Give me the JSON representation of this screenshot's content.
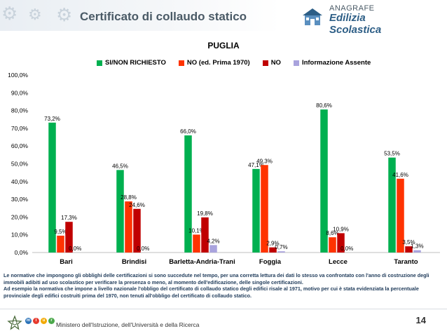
{
  "header": {
    "title": "Certificato di collaudo statico"
  },
  "logo": {
    "top": "ANAGRAFE",
    "bottom": "Edilizia Scolastica"
  },
  "chart_data": {
    "type": "bar",
    "title": "PUGLIA",
    "categories": [
      "Bari",
      "Brindisi",
      "Barletta-Andria-Trani",
      "Foggia",
      "Lecce",
      "Taranto"
    ],
    "series": [
      {
        "name": "SI/NON RICHIESTO",
        "color": "#00b050",
        "values": [
          73.2,
          46.5,
          66.0,
          47.1,
          80.6,
          53.5
        ]
      },
      {
        "name": "NO (ed. Prima 1970)",
        "color": "#ff3300",
        "values": [
          9.5,
          28.8,
          10.1,
          49.3,
          8.6,
          41.6
        ]
      },
      {
        "name": "NO",
        "color": "#c00000",
        "values": [
          17.3,
          24.6,
          19.8,
          2.9,
          10.9,
          3.5
        ]
      },
      {
        "name": "Informazione Assente",
        "color": "#a9a3dd",
        "values": [
          0.0,
          0.0,
          4.2,
          0.7,
          0.0,
          1.3
        ]
      }
    ],
    "data_labels": [
      [
        "73,2%",
        "46,5%",
        "66,0%",
        "47,1%",
        "80,6%",
        "53,5%"
      ],
      [
        "9,5%",
        "28,8%",
        "10,1%",
        "49,3%",
        "8,6%",
        "41,6%"
      ],
      [
        "17,3%",
        "24,6%",
        "19,8%",
        "2,9%",
        "10,9%",
        "3,5%"
      ],
      [
        "0,0%",
        "0,0%",
        "4,2%",
        "0,7%",
        "0,0%",
        "1,3%"
      ]
    ],
    "yticks": [
      "0,0%",
      "10,0%",
      "20,0%",
      "30,0%",
      "40,0%",
      "50,0%",
      "60,0%",
      "70,0%",
      "80,0%",
      "90,0%",
      "100,0%"
    ],
    "ylim": [
      0,
      100
    ],
    "legend_position": "top",
    "grid": false
  },
  "notes": {
    "line1": "Le normative che impongono gli obblighi delle certificazioni si sono succedute nel tempo, per una corretta lettura dei dati lo stesso va confrontato con l'anno di costruzione degli immobili adibiti ad uso scolastico per verificare la presenza o meno, al momento dell'edificazione, delle singole certificazioni.",
    "line2": "Ad esempio la normativa che impone a livello nazionale l'obbligo del certificato di collaudo statico degli edifici risale al 1971, motivo per cui è stata evidenziata la percentuale provinciale degli edifici costruiti prima del 1970, non tenuti all'obbligo del certificato di collaudo statico."
  },
  "footer": {
    "ministry": "Ministero dell'Istruzione, dell'Università e della Ricerca",
    "page_number": "14",
    "miur_letters": [
      "m",
      "i",
      "u",
      "r"
    ],
    "miur_colors": [
      "#2c73b8",
      "#e63a2e",
      "#f2a900",
      "#4aa84a"
    ]
  }
}
